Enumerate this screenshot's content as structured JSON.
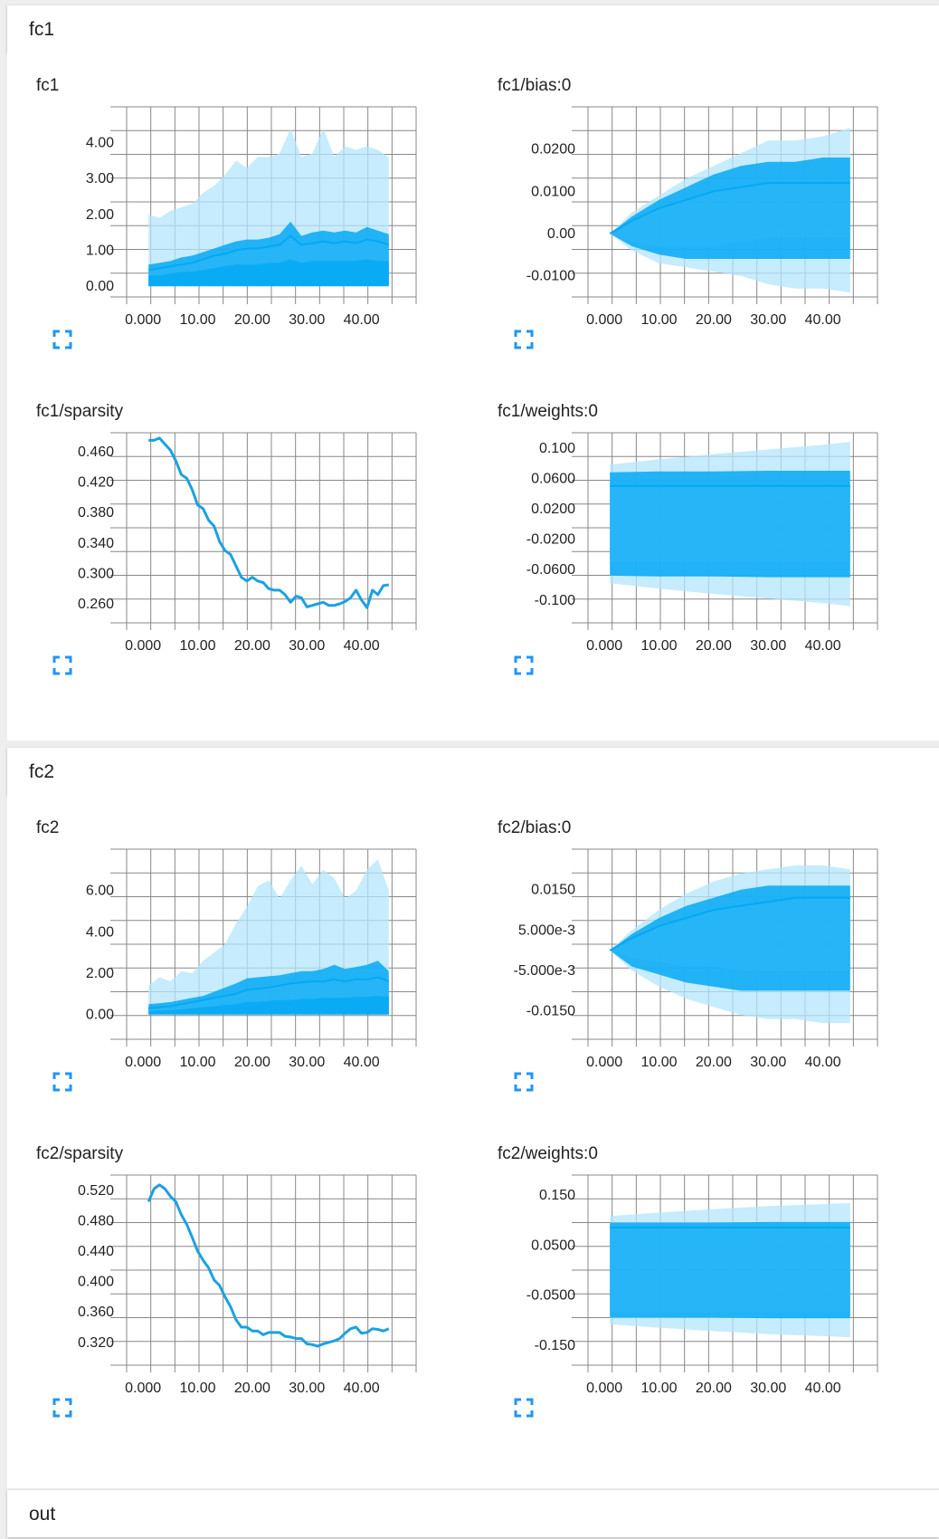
{
  "colors": {
    "dark": "#03a9f4",
    "mid": "#29b6f6",
    "light": "#b3e5fc",
    "line": "#1ba1e2",
    "grid": "#888888"
  },
  "sections": [
    {
      "title": "fc1",
      "charts": [
        {
          "title": "fc1",
          "type": "area",
          "xticks": [
            "0.000",
            "10.00",
            "20.00",
            "30.00",
            "40.00"
          ],
          "yticks": [
            "0.00",
            "1.00",
            "2.00",
            "3.00",
            "4.00"
          ],
          "ylim": [
            -0.3,
            5.0
          ],
          "xlim": [
            -5,
            50
          ],
          "bands": {
            "x": [
              1,
              3,
              5,
              7,
              9,
              11,
              13,
              15,
              17,
              19,
              21,
              23,
              25,
              27,
              29,
              31,
              33,
              35,
              37,
              39,
              41,
              43,
              45
            ],
            "outer_upper": [
              2.0,
              1.9,
              2.1,
              2.2,
              2.3,
              2.6,
              2.8,
              3.1,
              3.5,
              3.3,
              3.6,
              3.6,
              3.7,
              4.4,
              3.6,
              3.7,
              4.4,
              3.6,
              3.9,
              3.8,
              3.9,
              3.8,
              3.6
            ],
            "mid_upper": [
              0.6,
              0.65,
              0.7,
              0.8,
              0.85,
              0.95,
              1.05,
              1.15,
              1.25,
              1.3,
              1.3,
              1.35,
              1.45,
              1.8,
              1.4,
              1.5,
              1.55,
              1.5,
              1.55,
              1.5,
              1.65,
              1.55,
              1.45
            ],
            "inner_upper": [
              0.45,
              0.5,
              0.55,
              0.6,
              0.65,
              0.75,
              0.85,
              0.9,
              1.0,
              1.05,
              1.05,
              1.1,
              1.15,
              1.4,
              1.15,
              1.2,
              1.25,
              1.2,
              1.25,
              1.2,
              1.3,
              1.25,
              1.15
            ],
            "inner2_upper": [
              0.3,
              0.3,
              0.35,
              0.4,
              0.4,
              0.45,
              0.5,
              0.55,
              0.6,
              0.6,
              0.6,
              0.65,
              0.65,
              0.75,
              0.65,
              0.7,
              0.7,
              0.7,
              0.7,
              0.7,
              0.75,
              0.7,
              0.7
            ]
          }
        },
        {
          "title": "fc1/bias:0",
          "type": "area",
          "xticks": [
            "0.000",
            "10.00",
            "20.00",
            "30.00",
            "40.00"
          ],
          "yticks": [
            "-0.0100",
            "0.00",
            "0.0100",
            "0.0200"
          ],
          "ylim": [
            -0.015,
            0.03
          ],
          "xlim": [
            -5,
            50
          ],
          "bands": {
            "x": [
              1,
              5,
              10,
              15,
              20,
              25,
              30,
              35,
              40,
              45
            ],
            "outer_upper": [
              0,
              0.005,
              0.009,
              0.013,
              0.016,
              0.019,
              0.022,
              0.022,
              0.023,
              0.025
            ],
            "outer_lower": [
              0,
              -0.004,
              -0.007,
              -0.008,
              -0.009,
              -0.01,
              -0.012,
              -0.013,
              -0.013,
              -0.014
            ],
            "mid_upper": [
              0,
              0.004,
              0.008,
              0.011,
              0.014,
              0.016,
              0.017,
              0.017,
              0.018,
              0.018
            ],
            "mid_lower": [
              0,
              -0.003,
              -0.005,
              -0.006,
              -0.006,
              -0.006,
              -0.006,
              -0.006,
              -0.006,
              -0.006
            ],
            "inner_upper": [
              0,
              0.003,
              0.006,
              0.008,
              0.01,
              0.011,
              0.012,
              0.012,
              0.012,
              0.012
            ],
            "inner_lower": [
              0,
              -0.002,
              -0.003,
              -0.003,
              -0.003,
              -0.002,
              -0.001,
              -0.001,
              -0.001,
              -0.001
            ]
          }
        },
        {
          "title": "fc1/sparsity",
          "type": "line",
          "xticks": [
            "0.000",
            "10.00",
            "20.00",
            "30.00",
            "40.00"
          ],
          "yticks": [
            "0.260",
            "0.300",
            "0.340",
            "0.380",
            "0.420",
            "0.460"
          ],
          "ylim": [
            0.235,
            0.485
          ],
          "xlim": [
            -5,
            50
          ],
          "x": [
            1,
            2,
            3,
            4,
            5,
            6,
            7,
            8,
            9,
            10,
            11,
            12,
            13,
            14,
            15,
            16,
            17,
            18,
            19,
            20,
            21,
            22,
            23,
            24,
            25,
            26,
            27,
            28,
            29,
            30,
            31,
            32,
            33,
            34,
            35,
            36,
            37,
            38,
            39,
            40,
            41,
            42,
            43,
            44,
            45
          ],
          "y": [
            0.475,
            0.475,
            0.478,
            0.47,
            0.462,
            0.448,
            0.43,
            0.425,
            0.41,
            0.39,
            0.385,
            0.37,
            0.362,
            0.342,
            0.33,
            0.325,
            0.31,
            0.295,
            0.29,
            0.295,
            0.29,
            0.288,
            0.28,
            0.278,
            0.278,
            0.272,
            0.262,
            0.27,
            0.268,
            0.256,
            0.258,
            0.26,
            0.262,
            0.258,
            0.258,
            0.26,
            0.263,
            0.268,
            0.278,
            0.265,
            0.255,
            0.278,
            0.272,
            0.284,
            0.285
          ]
        },
        {
          "title": "fc1/weights:0",
          "type": "area",
          "xticks": [
            "0.000",
            "10.00",
            "20.00",
            "30.00",
            "40.00"
          ],
          "yticks": [
            "-0.100",
            "-0.0600",
            "-0.0200",
            "0.0200",
            "0.0600",
            "0.100"
          ],
          "ylim": [
            -0.13,
            0.12
          ],
          "xlim": [
            -5,
            50
          ],
          "bands": {
            "x": [
              1,
              10,
              20,
              30,
              40,
              45
            ],
            "outer_upper": [
              0.078,
              0.085,
              0.092,
              0.098,
              0.104,
              0.108
            ],
            "outer_lower": [
              -0.078,
              -0.085,
              -0.092,
              -0.098,
              -0.104,
              -0.108
            ],
            "mid_upper": [
              0.068,
              0.069,
              0.069,
              0.07,
              0.07,
              0.07
            ],
            "mid_lower": [
              -0.068,
              -0.069,
              -0.069,
              -0.07,
              -0.07,
              -0.07
            ],
            "inner_upper": [
              0.05,
              0.05,
              0.05,
              0.05,
              0.05,
              0.05
            ],
            "inner_lower": [
              -0.05,
              -0.05,
              -0.05,
              -0.05,
              -0.05,
              -0.05
            ]
          }
        }
      ]
    },
    {
      "title": "fc2",
      "charts": [
        {
          "title": "fc2",
          "type": "area",
          "xticks": [
            "0.000",
            "10.00",
            "20.00",
            "30.00",
            "40.00"
          ],
          "yticks": [
            "0.00",
            "2.00",
            "4.00",
            "6.00"
          ],
          "ylim": [
            -1.2,
            8.0
          ],
          "xlim": [
            -5,
            50
          ],
          "bands": {
            "x": [
              1,
              3,
              5,
              7,
              9,
              11,
              13,
              15,
              17,
              19,
              21,
              23,
              25,
              27,
              29,
              31,
              33,
              35,
              37,
              39,
              41,
              43,
              45
            ],
            "outer_upper": [
              1.4,
              1.8,
              1.6,
              2.1,
              2.0,
              2.6,
              3.0,
              3.4,
              4.4,
              5.2,
              6.2,
              6.5,
              5.6,
              6.5,
              7.2,
              6.3,
              7.0,
              6.6,
              5.6,
              6.0,
              7.0,
              7.5,
              6.0
            ],
            "mid_upper": [
              0.5,
              0.55,
              0.6,
              0.7,
              0.8,
              0.9,
              1.1,
              1.3,
              1.5,
              1.75,
              1.8,
              1.85,
              1.9,
              2.0,
              2.1,
              2.1,
              2.2,
              2.4,
              2.2,
              2.3,
              2.4,
              2.6,
              2.1
            ],
            "inner_upper": [
              0.3,
              0.35,
              0.4,
              0.5,
              0.6,
              0.7,
              0.8,
              0.9,
              1.0,
              1.2,
              1.25,
              1.3,
              1.4,
              1.5,
              1.55,
              1.6,
              1.6,
              1.7,
              1.6,
              1.7,
              1.7,
              1.8,
              1.6
            ],
            "inner2_upper": [
              0.15,
              0.2,
              0.2,
              0.25,
              0.3,
              0.35,
              0.4,
              0.45,
              0.5,
              0.6,
              0.6,
              0.65,
              0.7,
              0.7,
              0.75,
              0.75,
              0.8,
              0.8,
              0.8,
              0.85,
              0.85,
              0.9,
              0.85
            ]
          }
        },
        {
          "title": "fc2/bias:0",
          "type": "area",
          "xticks": [
            "0.000",
            "10.00",
            "20.00",
            "30.00",
            "40.00"
          ],
          "yticks": [
            "-0.0150",
            "-5.000e-3",
            "5.000e-3",
            "0.0150"
          ],
          "ylim": [
            -0.022,
            0.025
          ],
          "xlim": [
            -5,
            50
          ],
          "bands": {
            "x": [
              1,
              5,
              10,
              15,
              20,
              25,
              30,
              35,
              40,
              45
            ],
            "outer_upper": [
              0,
              0.005,
              0.01,
              0.014,
              0.017,
              0.019,
              0.02,
              0.021,
              0.021,
              0.02
            ],
            "outer_lower": [
              0,
              -0.005,
              -0.009,
              -0.012,
              -0.014,
              -0.016,
              -0.017,
              -0.017,
              -0.018,
              -0.018
            ],
            "mid_upper": [
              0,
              0.004,
              0.008,
              0.011,
              0.013,
              0.015,
              0.016,
              0.016,
              0.016,
              0.016
            ],
            "mid_lower": [
              0,
              -0.004,
              -0.006,
              -0.008,
              -0.009,
              -0.01,
              -0.01,
              -0.01,
              -0.01,
              -0.01
            ],
            "inner_upper": [
              0,
              0.003,
              0.006,
              0.008,
              0.01,
              0.011,
              0.012,
              0.013,
              0.013,
              0.013
            ],
            "inner_lower": [
              0,
              -0.002,
              -0.003,
              -0.004,
              -0.004,
              -0.005,
              -0.005,
              -0.005,
              -0.005,
              -0.005
            ]
          }
        },
        {
          "title": "fc2/sparsity",
          "type": "line",
          "xticks": [
            "0.000",
            "10.00",
            "20.00",
            "30.00",
            "40.00"
          ],
          "yticks": [
            "0.320",
            "0.360",
            "0.400",
            "0.440",
            "0.480",
            "0.520"
          ],
          "ylim": [
            0.29,
            0.54
          ],
          "xlim": [
            -5,
            50
          ],
          "x": [
            1,
            2,
            3,
            4,
            5,
            6,
            7,
            8,
            9,
            10,
            11,
            12,
            13,
            14,
            15,
            16,
            17,
            18,
            19,
            20,
            21,
            22,
            23,
            24,
            25,
            26,
            27,
            28,
            29,
            30,
            31,
            32,
            33,
            34,
            35,
            36,
            37,
            38,
            39,
            40,
            41,
            42,
            43,
            44,
            45
          ],
          "y": [
            0.505,
            0.522,
            0.527,
            0.522,
            0.512,
            0.505,
            0.488,
            0.475,
            0.458,
            0.44,
            0.428,
            0.418,
            0.402,
            0.395,
            0.38,
            0.367,
            0.35,
            0.34,
            0.34,
            0.335,
            0.335,
            0.33,
            0.333,
            0.333,
            0.333,
            0.328,
            0.327,
            0.325,
            0.325,
            0.318,
            0.317,
            0.315,
            0.318,
            0.32,
            0.322,
            0.325,
            0.332,
            0.338,
            0.34,
            0.332,
            0.333,
            0.338,
            0.337,
            0.335,
            0.338
          ]
        },
        {
          "title": "fc2/weights:0",
          "type": "area",
          "xticks": [
            "0.000",
            "10.00",
            "20.00",
            "30.00",
            "40.00"
          ],
          "yticks": [
            "-0.150",
            "-0.0500",
            "0.0500",
            "0.150"
          ],
          "ylim": [
            -0.19,
            0.19
          ],
          "xlim": [
            -5,
            50
          ],
          "bands": {
            "x": [
              1,
              10,
              20,
              30,
              40,
              45
            ],
            "outer_upper": [
              0.108,
              0.115,
              0.122,
              0.128,
              0.132,
              0.134
            ],
            "outer_lower": [
              -0.108,
              -0.115,
              -0.122,
              -0.128,
              -0.132,
              -0.134
            ],
            "mid_upper": [
              0.095,
              0.095,
              0.095,
              0.096,
              0.096,
              0.096
            ],
            "mid_lower": [
              -0.095,
              -0.095,
              -0.095,
              -0.096,
              -0.096,
              -0.096
            ],
            "inner_upper": [
              0.085,
              0.085,
              0.085,
              0.085,
              0.085,
              0.085
            ],
            "inner_lower": [
              -0.085,
              -0.085,
              -0.085,
              -0.085,
              -0.085,
              -0.085
            ]
          }
        }
      ]
    },
    {
      "title": "out",
      "charts": []
    }
  ]
}
